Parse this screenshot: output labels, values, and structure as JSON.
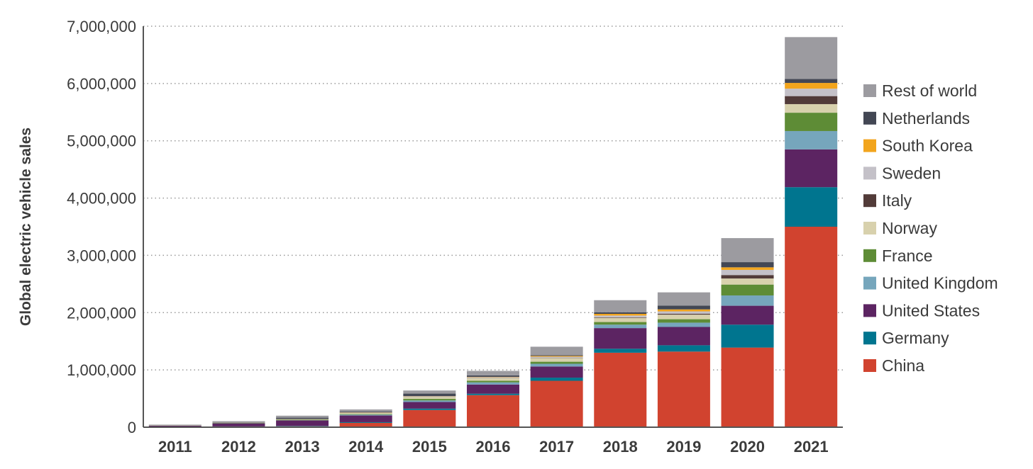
{
  "chart_data": {
    "type": "bar",
    "stacked": true,
    "ylabel": "Global electric vehicle sales",
    "xlabel": "",
    "ylim": [
      0,
      7000000
    ],
    "yticks": [
      0,
      1000000,
      2000000,
      3000000,
      4000000,
      5000000,
      6000000,
      7000000
    ],
    "ytick_labels": [
      "0",
      "1,000,000",
      "2,000,000",
      "3,000,000",
      "4,000,000",
      "5,000,000",
      "6,000,000",
      "7,000,000"
    ],
    "grid": "horizontal dotted",
    "legend_position": "right",
    "categories": [
      "2011",
      "2012",
      "2013",
      "2014",
      "2015",
      "2016",
      "2017",
      "2018",
      "2019",
      "2020",
      "2021"
    ],
    "series": [
      {
        "name": "China",
        "color": "#d1432f",
        "values": [
          5000,
          10000,
          15000,
          75000,
          300000,
          560000,
          810000,
          1300000,
          1320000,
          1390000,
          3500000
        ]
      },
      {
        "name": "Germany",
        "color": "#00758f",
        "values": [
          2000,
          4000,
          6000,
          12000,
          25000,
          25000,
          55000,
          70000,
          110000,
          400000,
          690000
        ]
      },
      {
        "name": "United States",
        "color": "#5c2462",
        "values": [
          18000,
          53000,
          97000,
          118000,
          114000,
          160000,
          195000,
          360000,
          320000,
          330000,
          660000
        ]
      },
      {
        "name": "United Kingdom",
        "color": "#76a6bc",
        "values": [
          1000,
          2000,
          3000,
          15000,
          28000,
          38000,
          47000,
          60000,
          75000,
          180000,
          320000
        ]
      },
      {
        "name": "France",
        "color": "#5e8c36",
        "values": [
          2500,
          6000,
          9000,
          11000,
          27000,
          29000,
          36000,
          46000,
          60000,
          190000,
          320000
        ]
      },
      {
        "name": "Norway",
        "color": "#d8d1ad",
        "values": [
          2000,
          4000,
          8000,
          20000,
          33000,
          45000,
          62000,
          73000,
          80000,
          106000,
          150000
        ]
      },
      {
        "name": "Italy",
        "color": "#523b39",
        "values": [
          500,
          1000,
          1500,
          2000,
          2500,
          3000,
          5000,
          10000,
          17000,
          60000,
          140000
        ]
      },
      {
        "name": "Sweden",
        "color": "#c4c1c8",
        "values": [
          500,
          1000,
          2000,
          4000,
          9000,
          13000,
          20000,
          30000,
          40000,
          90000,
          130000
        ]
      },
      {
        "name": "South Korea",
        "color": "#f2a51d",
        "values": [
          500,
          1000,
          1500,
          3000,
          4000,
          6000,
          14000,
          30000,
          35000,
          45000,
          100000
        ]
      },
      {
        "name": "Netherlands",
        "color": "#434754",
        "values": [
          1000,
          5000,
          23000,
          13000,
          44000,
          25000,
          11000,
          28000,
          67000,
          90000,
          70000
        ]
      },
      {
        "name": "Rest of world",
        "color": "#9c9ba0",
        "values": [
          12000,
          18000,
          35000,
          37000,
          54000,
          79000,
          150000,
          210000,
          230000,
          420000,
          730000
        ]
      }
    ]
  }
}
